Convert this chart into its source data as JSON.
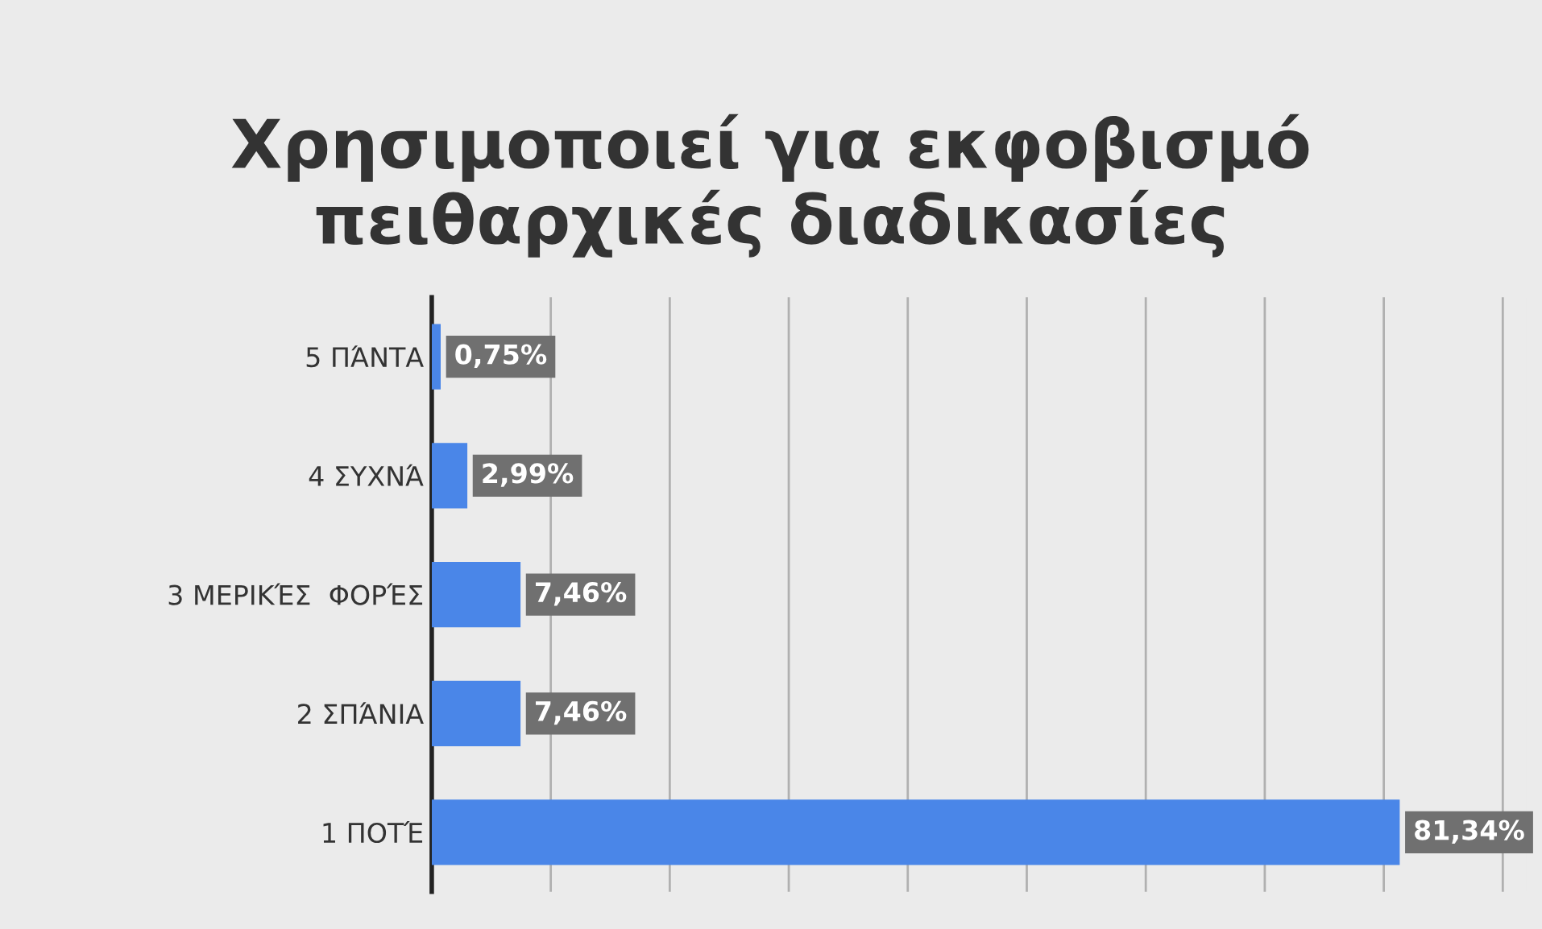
{
  "chart_data": {
    "type": "bar",
    "orientation": "horizontal",
    "title": "Χρησιμοποιεί για εκφοβισμό\nπειθαρχικές διαδικασίες",
    "categories": [
      "5 ΠΆΝΤΑ",
      "4 ΣΥΧΝΆ",
      "3 ΜΕΡΙΚΈΣ  ΦΟΡΈΣ",
      "2 ΣΠΆΝΙΑ",
      "1 ΠΟΤΈ"
    ],
    "values": [
      0.75,
      2.99,
      7.46,
      7.46,
      81.34
    ],
    "value_labels": [
      "0,75%",
      "2,99%",
      "7,46%",
      "7,46%",
      "81,34%"
    ],
    "color": "#4a86e8",
    "xlim": [
      0,
      92
    ],
    "xticks": [
      {
        "value": 10,
        "label": null
      },
      {
        "value": 20,
        "label": null
      },
      {
        "value": 30,
        "label": null
      },
      {
        "value": 40,
        "label": null
      },
      {
        "value": 50,
        "label": null
      },
      {
        "value": 60,
        "label": null
      },
      {
        "value": 70,
        "label": null
      },
      {
        "value": 80,
        "label": null
      },
      {
        "value": 90,
        "label": null
      }
    ],
    "grid": "x",
    "tick_labels": "y",
    "legend": false
  }
}
